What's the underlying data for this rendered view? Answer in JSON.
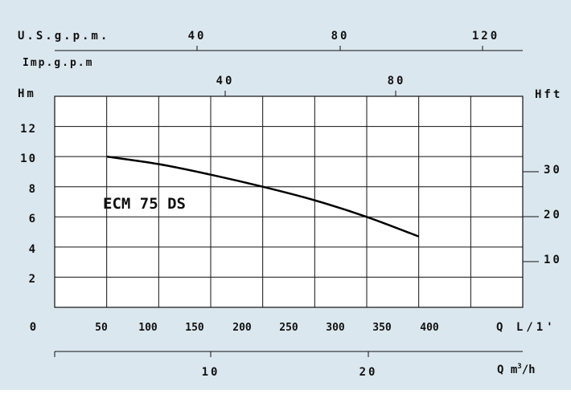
{
  "colors": {
    "background": "#dbe7ee",
    "grid": "#111111",
    "plot_area": "#ffffff",
    "curve": "#000000"
  },
  "axes": {
    "usgpm": {
      "label": "U.S.g.p.m.",
      "ticks": [
        "40",
        "80",
        "120"
      ]
    },
    "impgpm": {
      "label": "Imp.g.p.m",
      "ticks": [
        "40",
        "80"
      ]
    },
    "hm": {
      "label": "Hm",
      "ticks": [
        "2",
        "4",
        "6",
        "8",
        "10",
        "12"
      ],
      "zero": "0"
    },
    "hft": {
      "label": "Hft",
      "ticks": [
        "10",
        "20",
        "30"
      ]
    },
    "qlmin": {
      "label": "Q L/1'",
      "ticks": [
        "50",
        "100",
        "150",
        "200",
        "250",
        "300",
        "350",
        "400"
      ]
    },
    "qm3h": {
      "label_prefix": "Q m",
      "label_sup": "3",
      "label_suffix": "/h",
      "ticks": [
        "10",
        "20"
      ]
    }
  },
  "chart_data": {
    "type": "line",
    "title": "",
    "xlabel": "Q L/1'",
    "ylabel": "Hm",
    "xlim": [
      0,
      450
    ],
    "ylim": [
      0,
      14
    ],
    "grid": true,
    "series": [
      {
        "name": "ECM 75 DS",
        "x": [
          50,
          100,
          150,
          200,
          250,
          300,
          350
        ],
        "y": [
          10.0,
          9.5,
          8.8,
          8.0,
          7.1,
          6.0,
          4.7
        ]
      }
    ]
  }
}
